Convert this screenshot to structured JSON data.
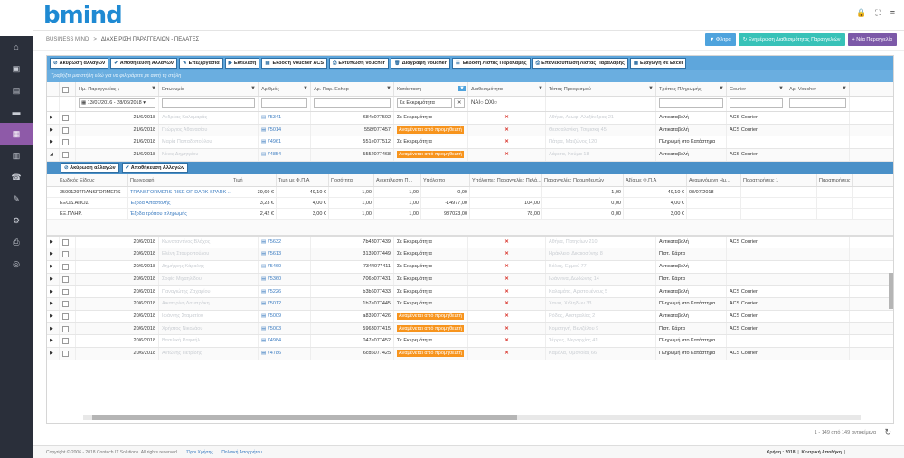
{
  "brand": "bmind",
  "breadcrumb": {
    "root": "BUSINESS MIND",
    "sep": ">",
    "current": "ΔΙΑΧΕΙΡΙΣΗ ΠΑΡΑΓΓΕΛΙΩΝ - ΠΕΛΑΤΕΣ"
  },
  "top_buttons": {
    "filters": "Φίλτρα",
    "refresh": "Ενημέρωση Διαθεσιμότητας Παραγγελιών",
    "new": "Νέα Παραγγελία"
  },
  "toolbar": [
    "Ακύρωση αλλαγών",
    "Αποθήκευση Αλλαγών",
    "Επεξεργασία",
    "Εκτέλεση",
    "Έκδοση Voucher ACS",
    "Εκτύπωση Voucher",
    "Διαγραφή Voucher",
    "Έκδοση Λίστας Παραλαβής",
    "Επανεκτύπωση Λίστας Παραλαβής",
    "Εξαγωγή σε Excel"
  ],
  "group_hint": "Τραβήξτε μια στήλη εδώ για να φιλτράρετε με αυτή τη στήλη",
  "columns": [
    "Ημ. Παραγγελίας",
    "Επωνυμία",
    "Αριθμός",
    "Αρ. Παρ. Eshop",
    "Κατάσταση",
    "Διαθεσιμότητα",
    "Τόπος Προορισμού",
    "Τρόπος Πληρωμής",
    "Courier",
    "Αρ. Voucher"
  ],
  "filters": {
    "date_range": "13/07/2016 - 28/06/2018",
    "status": "Σε Εκκρεμότητα",
    "yes": "ΝΑΙ",
    "no": "ΟΧΙ"
  },
  "rows_top": [
    {
      "date": "21/6/2018",
      "name": "Ανδρέας Καλαμαράς",
      "num": "75341",
      "eshop": "684c077502",
      "status": "Σε Εκκρεμότητα",
      "orange": false,
      "dest": "Αθήνα, Λεωφ. Αλεξάνδρας 21",
      "pay": "Αντικαταβολή",
      "courier": "ACS Courier"
    },
    {
      "date": "21/6/2018",
      "name": "Γεώργιος Αθανασίου",
      "num": "75014",
      "eshop": "558f077457",
      "status": "Αναμένεται από προμηθευτή",
      "orange": true,
      "dest": "Θεσσαλονίκη, Τσιμισκή 45",
      "pay": "Αντικαταβολή",
      "courier": "ACS Courier"
    },
    {
      "date": "21/6/2018",
      "name": "Μαρία Παπαδοπούλου",
      "num": "74961",
      "eshop": "551e077512",
      "status": "Σε Εκκρεμότητα",
      "orange": false,
      "dest": "Πάτρα, Μαιζώνος 120",
      "pay": "Πληρωμή στο Κατάστημα",
      "courier": ""
    },
    {
      "date": "21/6/2018",
      "name": "Νίκος Δημητρίου",
      "num": "74854",
      "eshop": "5552077468",
      "status": "Αναμένεται από προμηθευτή",
      "orange": true,
      "dest": "Λάρισα, Κούμα 18",
      "pay": "Αντικαταβολή",
      "courier": "ACS Courier"
    }
  ],
  "detail": {
    "cancel": "Ακύρωση αλλαγών",
    "save": "Αποθήκευση Αλλαγών",
    "headers": [
      "Κωδικός Είδους",
      "Περιγραφή",
      "Τιμή",
      "Τιμή με Φ.Π.Α",
      "Ποσότητα",
      "Ανεκτέλεστη Π...",
      "Υπόλοιπο",
      "Υπόλοιπες Παραγγελίες Πελά...",
      "Παραγγελίες Προμηθευτών",
      "Αξία με Φ.Π.Α",
      "Αναμενόμενη Ημ...",
      "Παρατηρήσεις 1",
      "Παρατηρήσεις"
    ],
    "rows": [
      [
        "3500129TRANSFORMERS",
        "TRANSFORMERS RISE OF DARK SPARK ...",
        "39,60 €",
        "49,10 €",
        "1,00",
        "1,00",
        "0,00",
        "",
        "1,00",
        "49,10 €",
        "08/07/2018",
        "",
        ""
      ],
      [
        "ΕΞΟΔ.ΑΠΟΣ.",
        "Έξοδα Αποστολής",
        "3,23 €",
        "4,00 €",
        "1,00",
        "1,00",
        "-14977,00",
        "104,00",
        "0,00",
        "4,00 €",
        "",
        "",
        ""
      ],
      [
        "ΕΞ.ΠΛΗΡ.",
        "Έξοδα τρόπου πληρωμής",
        "2,42 €",
        "3,00 €",
        "1,00",
        "1,00",
        "987023,00",
        "78,00",
        "0,00",
        "3,00 €",
        "",
        "",
        ""
      ]
    ]
  },
  "rows_bottom": [
    {
      "date": "20/6/2018",
      "name": "Κωνσταντίνος Βλάχος",
      "num": "75632",
      "eshop": "7b43077439",
      "status": "Σε Εκκρεμότητα",
      "orange": false,
      "dest": "Αθήνα, Πατησίων 210",
      "pay": "Αντικαταβολή",
      "courier": "ACS Courier"
    },
    {
      "date": "20/6/2018",
      "name": "Ελένη Σταυροπούλου",
      "num": "75613",
      "eshop": "3139077449",
      "status": "Σε Εκκρεμότητα",
      "orange": false,
      "dest": "Ηράκλειο, Δικαιοσύνης 8",
      "pay": "Πιστ. Κάρτα",
      "courier": ""
    },
    {
      "date": "20/6/2018",
      "name": "Δημήτρης Κάραλης",
      "num": "75460",
      "eshop": "7344077411",
      "eshop2": "",
      "status": "Σε Εκκρεμότητα",
      "orange": false,
      "dest": "Βόλος, Ερμού 77",
      "pay": "Αντικαταβολή",
      "courier": ""
    },
    {
      "date": "20/6/2018",
      "name": "Σοφία Μιχαηλίδου",
      "num": "75360",
      "eshop": "706b077431",
      "status": "Σε Εκκρεμότητα",
      "orange": false,
      "dest": "Ιωάννινα, Δωδώνης 14",
      "pay": "Πιστ. Κάρτα",
      "courier": ""
    },
    {
      "date": "20/6/2018",
      "name": "Παναγιώτης Ζαχαρίου",
      "num": "75226",
      "eshop": "b3b6077433",
      "status": "Σε Εκκρεμότητα",
      "orange": false,
      "dest": "Καλαμάτα, Αριστομένους 5",
      "pay": "Αντικαταβολή",
      "courier": "ACS Courier"
    },
    {
      "date": "20/6/2018",
      "name": "Αικατερίνη Λαμπράκη",
      "num": "75012",
      "eshop": "1b7e077445",
      "status": "Σε Εκκρεμότητα",
      "orange": false,
      "dest": "Χανιά, Χάληδων 33",
      "pay": "Πληρωμή στο Κατάστημα",
      "courier": "ACS Courier"
    },
    {
      "date": "20/6/2018",
      "name": "Ιωάννης Σταματίου",
      "num": "75009",
      "eshop": "a839077426",
      "status": "Αναμένεται από προμηθευτή",
      "orange": true,
      "dest": "Ρόδος, Αυστραλίας 2",
      "pay": "Αντικαταβολή",
      "courier": "ACS Courier"
    },
    {
      "date": "20/6/2018",
      "name": "Χρήστος Νικολάου",
      "num": "75003",
      "eshop": "5963077415",
      "status": "Αναμένεται από προμηθευτή",
      "orange": true,
      "dest": "Κομοτηνή, Βενιζέλου 9",
      "pay": "Πιστ. Κάρτα",
      "courier": "ACS Courier"
    },
    {
      "date": "20/6/2018",
      "name": "Βασιλική Ραφαήλ",
      "num": "74984",
      "eshop": "047e077452",
      "status": "Σε Εκκρεμότητα",
      "orange": false,
      "dest": "Σέρρες, Μεραρχίας 41",
      "pay": "Πληρωμή στο Κατάστημα",
      "courier": ""
    },
    {
      "date": "20/6/2018",
      "name": "Αντώνης Πετρίδης",
      "num": "74786",
      "eshop": "6cd6077425",
      "status": "Αναμένεται από προμηθευτή",
      "orange": true,
      "dest": "Καβάλα, Ομονοίας 66",
      "pay": "Πληρωμή στο Κατάστημα",
      "courier": "ACS Courier"
    }
  ],
  "pager": "1 - 149 από 149 αντικείμενα",
  "footer": {
    "copyright": "Copyright © 2006 - 2018 Contech IT Solutions. All rights reserved.",
    "terms": "Όροι Χρήσης",
    "privacy": "Πολιτική Απορρήτου",
    "user": "Χρήση : 2018",
    "store": "Κεντρική Αποθήκη"
  }
}
